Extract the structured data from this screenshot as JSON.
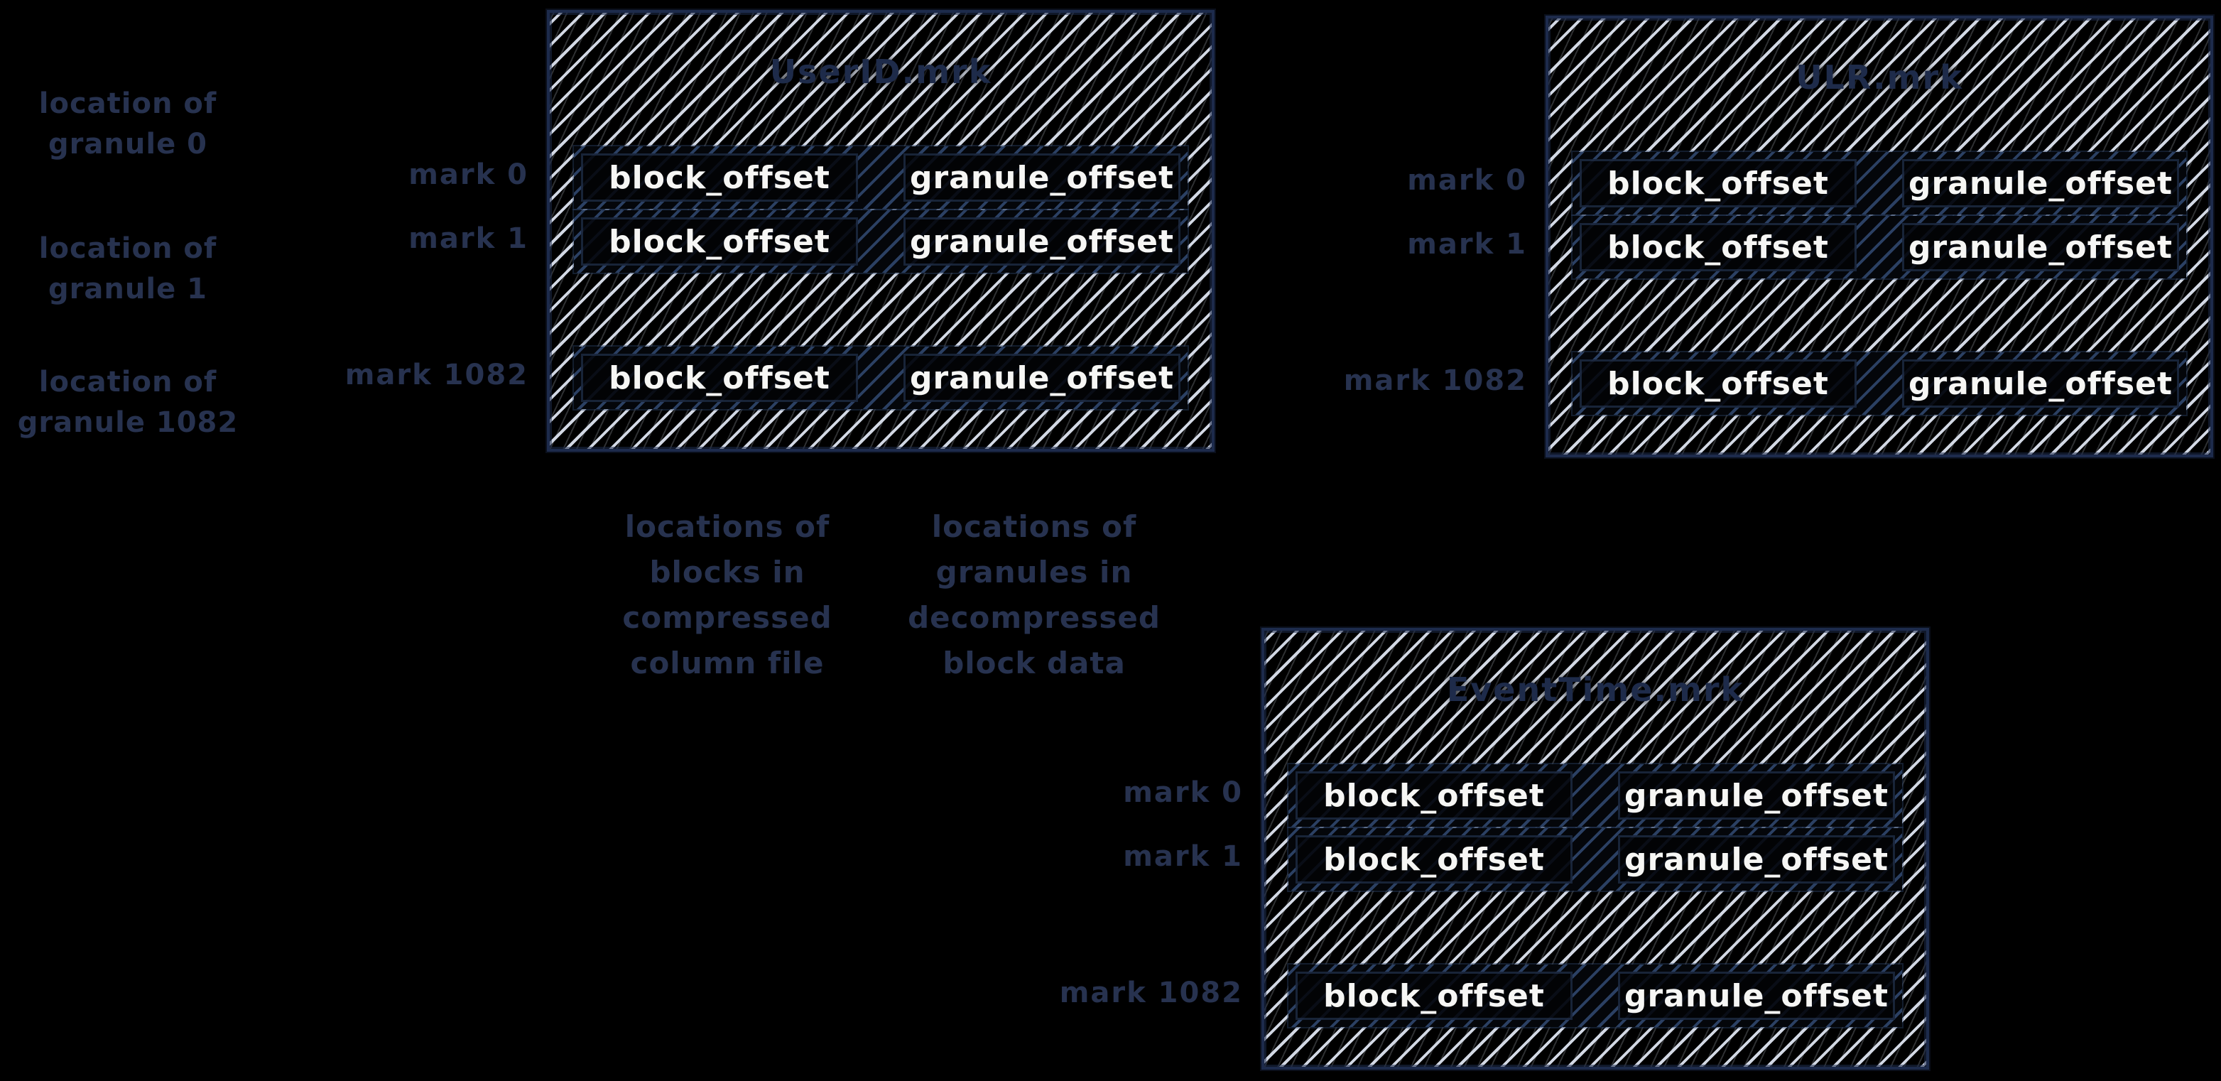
{
  "colors": {
    "background": "#000000",
    "hatch_light": "#d2d8e4",
    "hatch_navy": "#2b4063",
    "ink_navy": "#27324f",
    "box_border": "#1d2b4c",
    "cell_text": "#f6f6f4"
  },
  "left_annotations": [
    {
      "line1": "location of",
      "line2": "granule 0"
    },
    {
      "line1": "location of",
      "line2": "granule 1"
    },
    {
      "line1": "location of",
      "line2": "granule 1082"
    }
  ],
  "column_captions": [
    {
      "line1": "locations of",
      "line2": "blocks in",
      "line3": "compressed",
      "line4": "column file"
    },
    {
      "line1": "locations of",
      "line2": "granules in",
      "line3": "decompressed",
      "line4": "block data"
    }
  ],
  "boxes": [
    {
      "title": "UserID.mrk",
      "marks": [
        {
          "label": "mark 0",
          "cells": {
            "block": "block_offset",
            "granule": "granule_offset"
          }
        },
        {
          "label": "mark 1",
          "cells": {
            "block": "block_offset",
            "granule": "granule_offset"
          }
        },
        {
          "label": "mark 1082",
          "cells": {
            "block": "block_offset",
            "granule": "granule_offset"
          }
        }
      ]
    },
    {
      "title": "ULR.mrk",
      "marks": [
        {
          "label": "mark 0",
          "cells": {
            "block": "block_offset",
            "granule": "granule_offset"
          }
        },
        {
          "label": "mark 1",
          "cells": {
            "block": "block_offset",
            "granule": "granule_offset"
          }
        },
        {
          "label": "mark 1082",
          "cells": {
            "block": "block_offset",
            "granule": "granule_offset"
          }
        }
      ]
    },
    {
      "title": "EventTime.mrk",
      "marks": [
        {
          "label": "mark 0",
          "cells": {
            "block": "block_offset",
            "granule": "granule_offset"
          }
        },
        {
          "label": "mark 1",
          "cells": {
            "block": "block_offset",
            "granule": "granule_offset"
          }
        },
        {
          "label": "mark 1082",
          "cells": {
            "block": "block_offset",
            "granule": "granule_offset"
          }
        }
      ]
    }
  ]
}
